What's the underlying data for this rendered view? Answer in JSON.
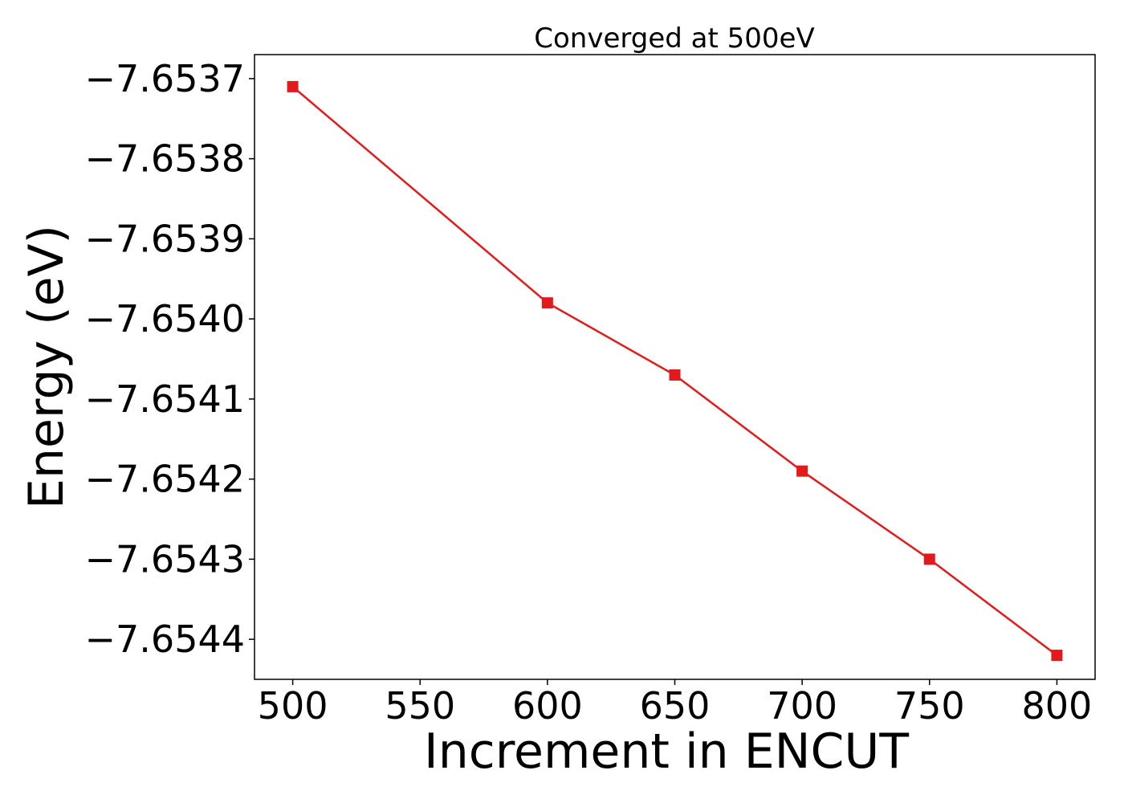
{
  "chart_data": {
    "type": "line",
    "title": "Converged at 500eV",
    "xlabel": "Increment in ENCUT",
    "ylabel": "Energy (eV)",
    "x": [
      500,
      600,
      650,
      700,
      750,
      800
    ],
    "series": [
      {
        "values": [
          -7.65371,
          -7.65398,
          -7.65407,
          -7.65419,
          -7.6543,
          -7.65442
        ],
        "color": "#e31a1c",
        "marker": "square"
      }
    ],
    "xlim": [
      485,
      815
    ],
    "ylim": [
      -7.65445,
      -7.65367
    ],
    "xticks": [
      500,
      550,
      600,
      650,
      700,
      750,
      800
    ],
    "xtick_labels": [
      "500",
      "550",
      "600",
      "650",
      "700",
      "750",
      "800"
    ],
    "yticks": [
      -7.6537,
      -7.6538,
      -7.6539,
      -7.654,
      -7.6541,
      -7.6542,
      -7.6543,
      -7.6544
    ],
    "ytick_labels": [
      "−7.6537",
      "−7.6538",
      "−7.6539",
      "−7.6540",
      "−7.6541",
      "−7.6542",
      "−7.6543",
      "−7.6544"
    ],
    "grid": false,
    "legend": "none"
  }
}
